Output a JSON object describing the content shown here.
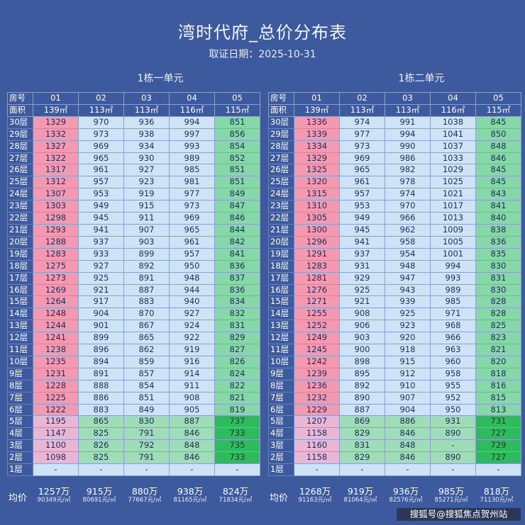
{
  "title": "湾时代府_总价分布表",
  "subtitle": "取证日期：2025-10-31",
  "left": {
    "title": "1栋一单元",
    "header_label": "房号",
    "area_label": "面积",
    "room_nos": [
      "01",
      "02",
      "03",
      "04",
      "05"
    ],
    "areas": [
      "139㎡",
      "113㎡",
      "113㎡",
      "116㎡",
      "115㎡"
    ],
    "floors": [
      "30层",
      "29层",
      "28层",
      "27层",
      "26层",
      "25层",
      "24层",
      "23层",
      "22层",
      "21层",
      "20层",
      "19层",
      "18层",
      "17层",
      "16层",
      "15层",
      "14层",
      "13层",
      "12层",
      "11层",
      "10层",
      "9层",
      "8层",
      "7层",
      "6层",
      "5层",
      "4层",
      "3层",
      "2层",
      "1层"
    ],
    "rows": [
      [
        "1329",
        "970",
        "936",
        "994",
        "851"
      ],
      [
        "1332",
        "973",
        "938",
        "997",
        "856"
      ],
      [
        "1327",
        "969",
        "934",
        "993",
        "854"
      ],
      [
        "1322",
        "965",
        "930",
        "989",
        "852"
      ],
      [
        "1317",
        "961",
        "927",
        "985",
        "851"
      ],
      [
        "1312",
        "957",
        "923",
        "981",
        "851"
      ],
      [
        "1307",
        "953",
        "919",
        "977",
        "849"
      ],
      [
        "1303",
        "949",
        "915",
        "973",
        "847"
      ],
      [
        "1298",
        "945",
        "911",
        "969",
        "846"
      ],
      [
        "1293",
        "941",
        "907",
        "965",
        "844"
      ],
      [
        "1288",
        "937",
        "903",
        "961",
        "842"
      ],
      [
        "1283",
        "933",
        "899",
        "957",
        "841"
      ],
      [
        "1275",
        "927",
        "892",
        "950",
        "836"
      ],
      [
        "1273",
        "925",
        "891",
        "948",
        "837"
      ],
      [
        "1269",
        "921",
        "887",
        "944",
        "836"
      ],
      [
        "1264",
        "917",
        "883",
        "940",
        "834"
      ],
      [
        "1248",
        "904",
        "870",
        "927",
        "832"
      ],
      [
        "1244",
        "901",
        "867",
        "924",
        "831"
      ],
      [
        "1241",
        "899",
        "865",
        "922",
        "829"
      ],
      [
        "1238",
        "896",
        "862",
        "919",
        "827"
      ],
      [
        "1235",
        "894",
        "859",
        "916",
        "826"
      ],
      [
        "1231",
        "891",
        "857",
        "914",
        "824"
      ],
      [
        "1228",
        "888",
        "854",
        "911",
        "822"
      ],
      [
        "1225",
        "886",
        "851",
        "908",
        "821"
      ],
      [
        "1222",
        "883",
        "849",
        "905",
        "819"
      ],
      [
        "1195",
        "865",
        "830",
        "887",
        "737"
      ],
      [
        "1147",
        "825",
        "791",
        "846",
        "733"
      ],
      [
        "1100",
        "826",
        "792",
        "848",
        "735"
      ],
      [
        "1098",
        "825",
        "791",
        "846",
        "733"
      ],
      [
        "-",
        "-",
        "-",
        "-",
        "-"
      ]
    ],
    "avg_label": "均价",
    "avg_totals": [
      "1257万",
      "915万",
      "880万",
      "938万",
      "824万"
    ],
    "avg_units": [
      "90349元/㎡",
      "80691元/㎡",
      "77667元/㎡",
      "81165元/㎡",
      "71834元/㎡"
    ]
  },
  "right": {
    "title": "1栋二单元",
    "header_label": "房号",
    "area_label": "面积",
    "room_nos": [
      "01",
      "02",
      "03",
      "04",
      "05"
    ],
    "areas": [
      "139㎡",
      "113㎡",
      "113㎡",
      "116㎡",
      "115㎡"
    ],
    "floors": [
      "30层",
      "29层",
      "28层",
      "27层",
      "26层",
      "25层",
      "24层",
      "23层",
      "22层",
      "21层",
      "20层",
      "19层",
      "18层",
      "17层",
      "16层",
      "15层",
      "14层",
      "13层",
      "12层",
      "11层",
      "10层",
      "9层",
      "8层",
      "7层",
      "6层",
      "5层",
      "4层",
      "3层",
      "2层",
      "1层"
    ],
    "rows": [
      [
        "1336",
        "974",
        "991",
        "1038",
        "845"
      ],
      [
        "1339",
        "977",
        "994",
        "1041",
        "850"
      ],
      [
        "1334",
        "973",
        "990",
        "1037",
        "848"
      ],
      [
        "1329",
        "969",
        "986",
        "1033",
        "846"
      ],
      [
        "1325",
        "965",
        "982",
        "1029",
        "845"
      ],
      [
        "1320",
        "961",
        "978",
        "1025",
        "845"
      ],
      [
        "1315",
        "957",
        "974",
        "1021",
        "843"
      ],
      [
        "1310",
        "953",
        "970",
        "1017",
        "841"
      ],
      [
        "1305",
        "949",
        "966",
        "1013",
        "840"
      ],
      [
        "1300",
        "945",
        "962",
        "1009",
        "838"
      ],
      [
        "1296",
        "941",
        "958",
        "1005",
        "836"
      ],
      [
        "1291",
        "937",
        "954",
        "1001",
        "835"
      ],
      [
        "1283",
        "931",
        "948",
        "994",
        "830"
      ],
      [
        "1281",
        "929",
        "947",
        "993",
        "831"
      ],
      [
        "1276",
        "925",
        "943",
        "989",
        "830"
      ],
      [
        "1271",
        "921",
        "939",
        "985",
        "828"
      ],
      [
        "1255",
        "908",
        "925",
        "971",
        "828"
      ],
      [
        "1252",
        "906",
        "923",
        "968",
        "825"
      ],
      [
        "1249",
        "903",
        "920",
        "966",
        "823"
      ],
      [
        "1245",
        "900",
        "918",
        "963",
        "821"
      ],
      [
        "1242",
        "898",
        "915",
        "960",
        "820"
      ],
      [
        "1239",
        "895",
        "912",
        "958",
        "818"
      ],
      [
        "1236",
        "892",
        "910",
        "955",
        "816"
      ],
      [
        "1232",
        "890",
        "907",
        "952",
        "815"
      ],
      [
        "1229",
        "887",
        "904",
        "950",
        "813"
      ],
      [
        "1207",
        "869",
        "886",
        "931",
        "731"
      ],
      [
        "1158",
        "829",
        "846",
        "890",
        "727"
      ],
      [
        "1160",
        "831",
        "848",
        "-",
        "729"
      ],
      [
        "1158",
        "829",
        "846",
        "890",
        "727"
      ],
      [
        "-",
        "-",
        "-",
        "-",
        "-"
      ]
    ],
    "avg_label": "均价",
    "avg_totals": [
      "1268万",
      "919万",
      "936万",
      "985万",
      "818万"
    ],
    "avg_units": [
      "91163元/㎡",
      "81064元/㎡",
      "82576元/㎡",
      "85271元/㎡",
      "71130元/㎡"
    ]
  },
  "watermark": "搜狐号@搜狐焦点贺州站"
}
